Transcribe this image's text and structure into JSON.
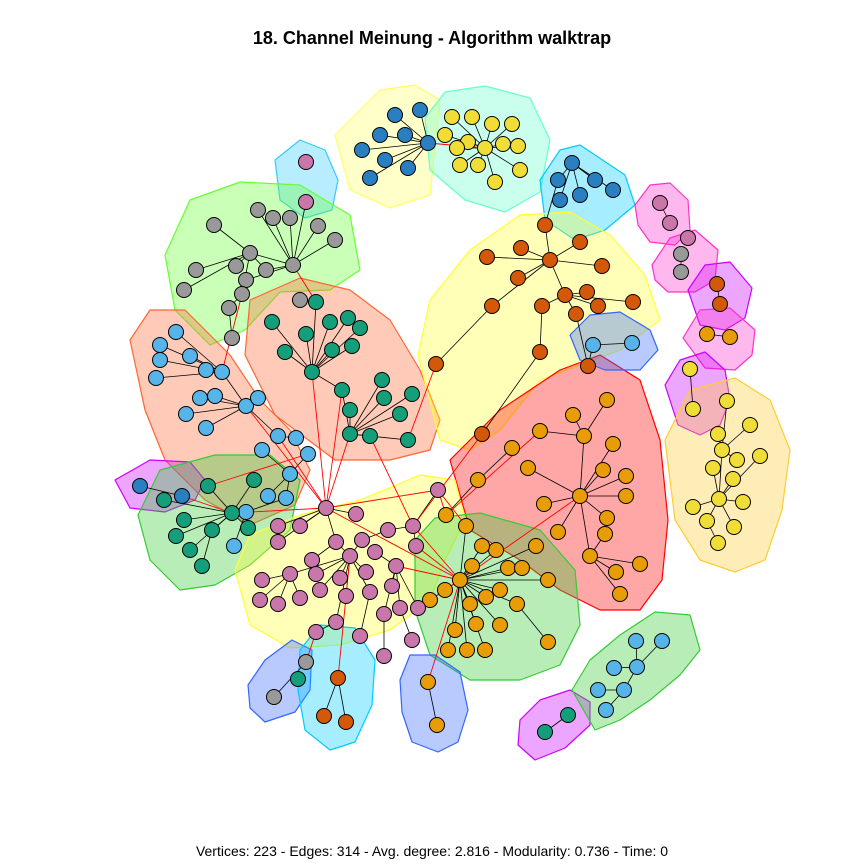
{
  "title": "18. Channel Meinung - Algorithm walktrap",
  "caption": "Vertices: 223 - Edges: 314 - Avg. degree: 2.816 - Modularity: 0.736 - Time: 0",
  "colors": {
    "vertex_border": "#000000",
    "edge_within": "#000000",
    "edge_between": "#ff0000",
    "vertex_fills": [
      "#2a7fc0",
      "#f1dd38",
      "#d4580a",
      "#e89c07",
      "#c977ab",
      "#159e7a",
      "#56b4e9",
      "#999999",
      "#c8b5e8"
    ],
    "hull_fills": [
      "#ffff66",
      "#66ffcc",
      "#33ccff",
      "#66ff33",
      "#ff6633",
      "#ffff33",
      "#ff0000",
      "#ff33cc",
      "#cc00ff",
      "#ffcc33",
      "#3366ff",
      "#00ccff",
      "#33cc33"
    ]
  },
  "legend": "none"
}
